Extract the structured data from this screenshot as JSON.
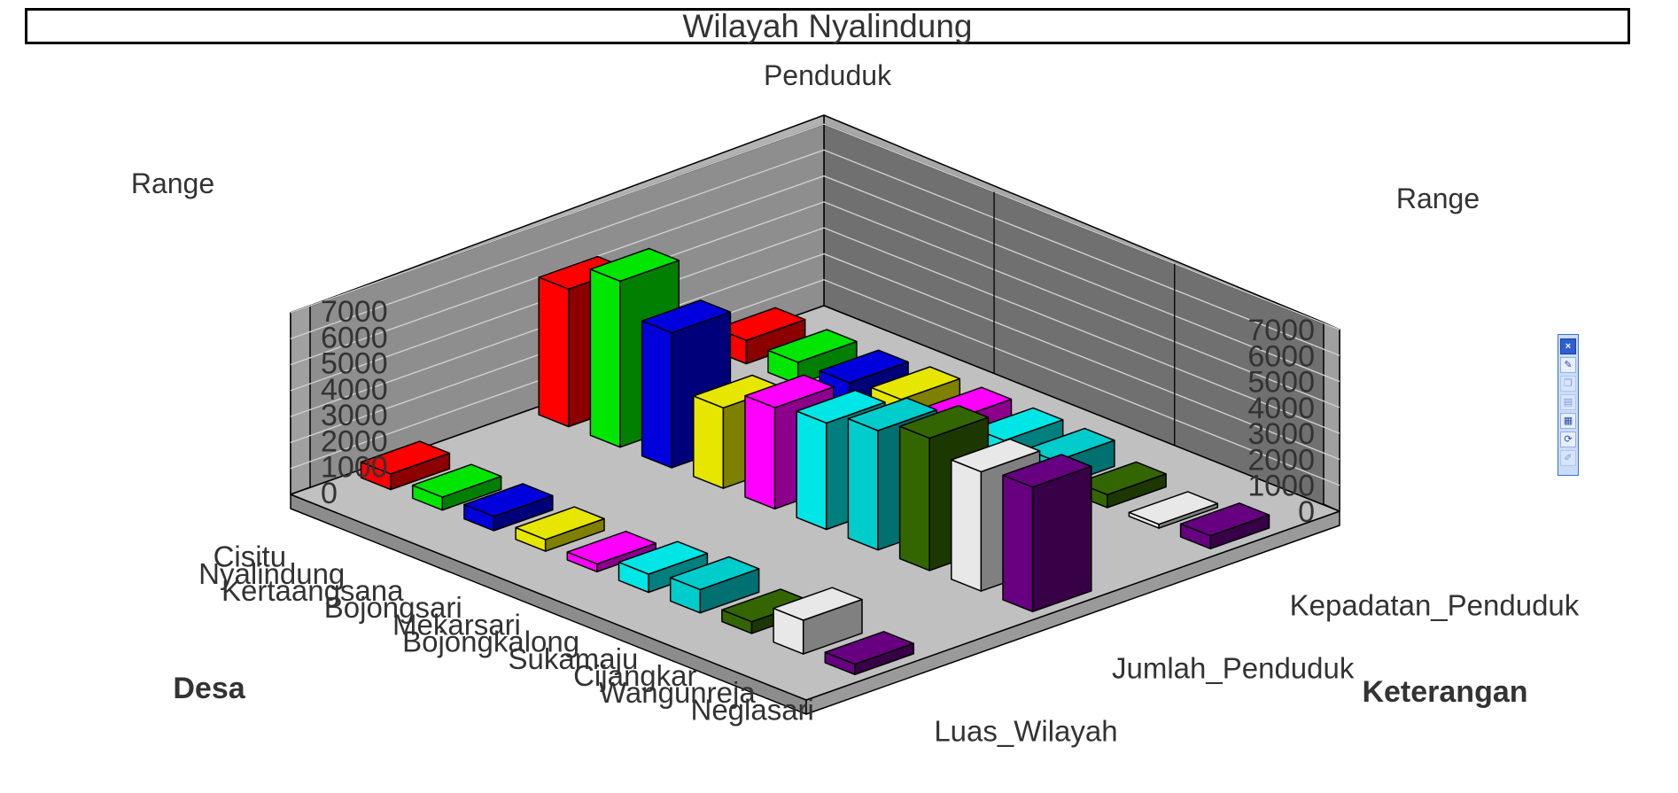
{
  "window": {
    "title": "Wilayah Nyalindung"
  },
  "toolbar": {
    "buttons": [
      {
        "icon": "close-icon"
      },
      {
        "icon": "wizard-icon"
      },
      {
        "icon": "copy-icon"
      },
      {
        "icon": "print-icon"
      },
      {
        "icon": "export-icon"
      },
      {
        "icon": "refresh-icon"
      },
      {
        "icon": "edit-icon"
      }
    ]
  },
  "chart_data": {
    "type": "bar",
    "subtitle": "Penduduk",
    "title": "Wilayah Nyalindung",
    "y_axis_left_label": "Range",
    "y_axis_right_label": "Range",
    "x_axis_label": "Desa",
    "z_axis_label": "Keterangan",
    "ylim": [
      0,
      7000
    ],
    "y_ticks": [
      0,
      1000,
      2000,
      3000,
      4000,
      5000,
      6000,
      7000
    ],
    "grid": true,
    "categories": [
      "Cisitu",
      "Nyalindung",
      "Kertaangsana",
      "Bojongsari",
      "Mekarsari",
      "Bojongkalong",
      "Sukamaju",
      "Cijangkar",
      "Wangunreja",
      "Neglasari"
    ],
    "category_colors": [
      "#ff0000",
      "#00e600",
      "#0000dd",
      "#e6e600",
      "#ff00ff",
      "#00e6e6",
      "#00cccc",
      "#336600",
      "#e8e8e8",
      "#660080"
    ],
    "series": [
      {
        "name": "Luas_Wilayah",
        "values": [
          600,
          500,
          550,
          450,
          300,
          700,
          900,
          450,
          1300,
          400
        ]
      },
      {
        "name": "Jumlah_Penduduk",
        "values": [
          5300,
          6400,
          5200,
          3100,
          3900,
          4100,
          4600,
          5100,
          4600,
          4800
        ]
      },
      {
        "name": "Kepadatan_Penduduk",
        "values": [
          900,
          850,
          850,
          1000,
          1000,
          1000,
          1000,
          500,
          150,
          500
        ]
      }
    ],
    "_render_note": ""
  }
}
